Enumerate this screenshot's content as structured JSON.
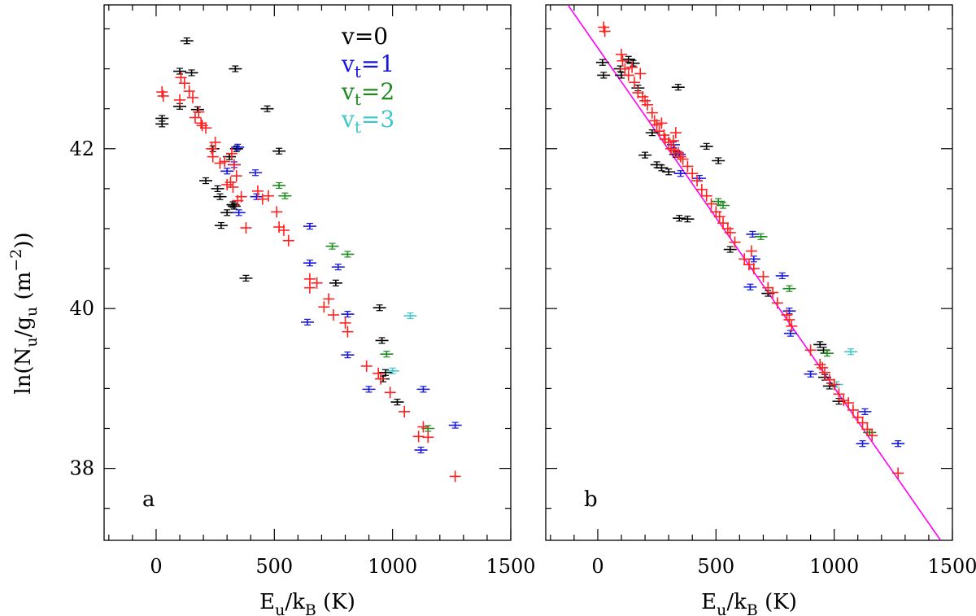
{
  "chart_data": {
    "type": "scatter",
    "colors": {
      "v=0": "#000000",
      "vt=1": "#1515e6",
      "vt=2": "#1f8a1f",
      "vt=3": "#40c8c8",
      "fit": "#ff00ff",
      "model": "#ff2020"
    },
    "legend": {
      "placement": "top-right of panel a",
      "entries": [
        {
          "key": "v=0",
          "base": "v=0",
          "sub": "",
          "rest": ""
        },
        {
          "key": "vt=1",
          "base": "v",
          "sub": "t",
          "rest": "=1"
        },
        {
          "key": "vt=2",
          "base": "v",
          "sub": "t",
          "rest": "=2"
        },
        {
          "key": "vt=3",
          "base": "v",
          "sub": "t",
          "rest": "=3"
        }
      ]
    },
    "ylabel": {
      "prefix": "ln(N",
      "sub1": "u",
      "mid": "/g",
      "sub2": "u",
      "units": " (m",
      "sup": "−2",
      "end": "))"
    },
    "xlabel": {
      "prefix": "E",
      "sub1": "u",
      "mid": "/k",
      "sub2": "B",
      "end": " (K)"
    },
    "xlim": [
      -220,
      1500
    ],
    "ylim": [
      37.1,
      43.8
    ],
    "xticks": [
      0,
      500,
      1000,
      1500
    ],
    "xtick_labels": [
      "0",
      "500",
      "1000",
      "1500"
    ],
    "yticks": [
      38,
      40,
      42
    ],
    "ytick_labels": [
      "38",
      "40",
      "42"
    ],
    "panels": [
      {
        "label": "a",
        "has_fit": false,
        "series": [
          {
            "name": "v=0",
            "points": [
              [
                25,
                42.38
              ],
              [
                25,
                42.31
              ],
              [
                100,
                42.97
              ],
              [
                100,
                42.53
              ],
              [
                130,
                43.35
              ],
              [
                150,
                42.95
              ],
              [
                175,
                42.49
              ],
              [
                210,
                41.6
              ],
              [
                240,
                42.0
              ],
              [
                260,
                41.5
              ],
              [
                270,
                41.4
              ],
              [
                275,
                41.04
              ],
              [
                300,
                41.2
              ],
              [
                310,
                41.9
              ],
              [
                325,
                41.3
              ],
              [
                330,
                41.28
              ],
              [
                335,
                43.0
              ],
              [
                340,
                42.0
              ],
              [
                380,
                40.38
              ],
              [
                470,
                42.5
              ],
              [
                520,
                41.97
              ],
              [
                760,
                40.32
              ],
              [
                945,
                40.01
              ],
              [
                955,
                39.6
              ],
              [
                960,
                39.12
              ],
              [
                970,
                39.2
              ],
              [
                1020,
                38.83
              ]
            ]
          },
          {
            "name": "vt=1",
            "points": [
              [
                300,
                41.72
              ],
              [
                330,
                41.8
              ],
              [
                345,
                42.02
              ],
              [
                350,
                41.2
              ],
              [
                420,
                41.7
              ],
              [
                425,
                41.4
              ],
              [
                640,
                39.83
              ],
              [
                650,
                41.03
              ],
              [
                650,
                40.57
              ],
              [
                770,
                40.52
              ],
              [
                810,
                39.93
              ],
              [
                810,
                39.42
              ],
              [
                900,
                38.99
              ],
              [
                1120,
                38.23
              ],
              [
                1130,
                38.99
              ],
              [
                1265,
                38.54
              ]
            ]
          },
          {
            "name": "vt=2",
            "points": [
              [
                520,
                41.54
              ],
              [
                545,
                41.41
              ],
              [
                745,
                40.78
              ],
              [
                810,
                40.68
              ],
              [
                975,
                39.43
              ],
              [
                1150,
                38.5
              ]
            ]
          },
          {
            "name": "vt=3",
            "points": [
              [
                1000,
                39.22
              ],
              [
                1075,
                39.91
              ]
            ]
          },
          {
            "name": "model",
            "points": [
              [
                25,
                42.71
              ],
              [
                30,
                42.66
              ],
              [
                100,
                42.61
              ],
              [
                105,
                42.89
              ],
              [
                120,
                42.82
              ],
              [
                140,
                42.72
              ],
              [
                155,
                42.64
              ],
              [
                165,
                42.39
              ],
              [
                180,
                42.46
              ],
              [
                190,
                42.32
              ],
              [
                195,
                42.29
              ],
              [
                210,
                42.26
              ],
              [
                235,
                42.0
              ],
              [
                240,
                41.9
              ],
              [
                250,
                42.08
              ],
              [
                270,
                41.82
              ],
              [
                290,
                41.84
              ],
              [
                300,
                41.55
              ],
              [
                315,
                41.58
              ],
              [
                320,
                41.94
              ],
              [
                325,
                41.52
              ],
              [
                330,
                41.8
              ],
              [
                340,
                41.66
              ],
              [
                345,
                41.35
              ],
              [
                360,
                41.4
              ],
              [
                380,
                41.01
              ],
              [
                430,
                41.47
              ],
              [
                450,
                41.37
              ],
              [
                475,
                41.41
              ],
              [
                510,
                41.21
              ],
              [
                520,
                41.02
              ],
              [
                540,
                40.98
              ],
              [
                560,
                40.85
              ],
              [
                650,
                40.37
              ],
              [
                650,
                40.26
              ],
              [
                680,
                40.32
              ],
              [
                710,
                40.02
              ],
              [
                730,
                40.12
              ],
              [
                750,
                39.92
              ],
              [
                800,
                39.82
              ],
              [
                810,
                39.71
              ],
              [
                890,
                39.28
              ],
              [
                940,
                39.19
              ],
              [
                950,
                39.12
              ],
              [
                990,
                38.95
              ],
              [
                1050,
                38.71
              ],
              [
                1110,
                38.4
              ],
              [
                1130,
                38.52
              ],
              [
                1150,
                38.39
              ],
              [
                1265,
                37.9
              ]
            ]
          }
        ]
      },
      {
        "label": "b",
        "has_fit": true,
        "fit_line": [
          [
            -150,
            43.9
          ],
          [
            1450,
            37.1
          ]
        ],
        "series": [
          {
            "name": "v=0",
            "points": [
              [
                20,
                43.08
              ],
              [
                25,
                42.92
              ],
              [
                95,
                43.0
              ],
              [
                100,
                42.92
              ],
              [
                130,
                43.12
              ],
              [
                150,
                43.07
              ],
              [
                170,
                42.76
              ],
              [
                200,
                41.92
              ],
              [
                230,
                42.2
              ],
              [
                250,
                41.8
              ],
              [
                270,
                41.76
              ],
              [
                300,
                41.71
              ],
              [
                330,
                41.93
              ],
              [
                340,
                42.77
              ],
              [
                345,
                41.13
              ],
              [
                380,
                41.12
              ],
              [
                460,
                42.03
              ],
              [
                510,
                41.85
              ],
              [
                560,
                40.74
              ],
              [
                720,
                40.19
              ],
              [
                940,
                39.55
              ],
              [
                955,
                39.48
              ],
              [
                960,
                39.14
              ],
              [
                980,
                39.03
              ],
              [
                1020,
                38.84
              ]
            ]
          },
          {
            "name": "vt=1",
            "points": [
              [
                320,
                42.05
              ],
              [
                345,
                41.93
              ],
              [
                350,
                41.69
              ],
              [
                430,
                41.63
              ],
              [
                645,
                40.27
              ],
              [
                655,
                40.93
              ],
              [
                660,
                40.62
              ],
              [
                780,
                40.41
              ],
              [
                810,
                39.97
              ],
              [
                815,
                39.69
              ],
              [
                900,
                39.18
              ],
              [
                1120,
                38.31
              ],
              [
                1130,
                38.71
              ],
              [
                1270,
                38.31
              ]
            ]
          },
          {
            "name": "vt=2",
            "points": [
              [
                510,
                41.34
              ],
              [
                530,
                41.29
              ],
              [
                690,
                40.9
              ],
              [
                810,
                40.25
              ],
              [
                970,
                39.44
              ],
              [
                1150,
                38.45
              ]
            ]
          },
          {
            "name": "vt=3",
            "points": [
              [
                1010,
                39.05
              ],
              [
                1070,
                39.46
              ]
            ]
          },
          {
            "name": "model",
            "points": [
              [
                25,
                43.52
              ],
              [
                30,
                43.47
              ],
              [
                100,
                43.18
              ],
              [
                105,
                43.1
              ],
              [
                115,
                43.0
              ],
              [
                130,
                42.92
              ],
              [
                145,
                43.02
              ],
              [
                155,
                42.83
              ],
              [
                170,
                42.7
              ],
              [
                180,
                42.94
              ],
              [
                190,
                42.65
              ],
              [
                200,
                42.6
              ],
              [
                210,
                42.55
              ],
              [
                230,
                42.45
              ],
              [
                240,
                42.35
              ],
              [
                250,
                42.3
              ],
              [
                260,
                42.22
              ],
              [
                270,
                42.32
              ],
              [
                280,
                42.17
              ],
              [
                285,
                42.12
              ],
              [
                300,
                42.08
              ],
              [
                310,
                42.0
              ],
              [
                320,
                42.1
              ],
              [
                325,
                41.98
              ],
              [
                330,
                42.2
              ],
              [
                340,
                41.95
              ],
              [
                350,
                41.9
              ],
              [
                360,
                41.87
              ],
              [
                380,
                41.78
              ],
              [
                400,
                41.69
              ],
              [
                420,
                41.6
              ],
              [
                440,
                41.49
              ],
              [
                460,
                41.41
              ],
              [
                480,
                41.31
              ],
              [
                500,
                41.21
              ],
              [
                515,
                41.15
              ],
              [
                530,
                41.07
              ],
              [
                550,
                41.0
              ],
              [
                560,
                40.95
              ],
              [
                580,
                40.83
              ],
              [
                620,
                40.62
              ],
              [
                640,
                40.55
              ],
              [
                650,
                40.72
              ],
              [
                660,
                40.5
              ],
              [
                700,
                40.4
              ],
              [
                720,
                40.26
              ],
              [
                740,
                40.2
              ],
              [
                760,
                40.07
              ],
              [
                800,
                39.92
              ],
              [
                810,
                39.86
              ],
              [
                820,
                39.78
              ],
              [
                900,
                39.48
              ],
              [
                940,
                39.3
              ],
              [
                950,
                39.26
              ],
              [
                960,
                39.2
              ],
              [
                980,
                39.11
              ],
              [
                1000,
                39.05
              ],
              [
                1020,
                38.93
              ],
              [
                1040,
                38.85
              ],
              [
                1060,
                38.82
              ],
              [
                1080,
                38.73
              ],
              [
                1100,
                38.64
              ],
              [
                1120,
                38.57
              ],
              [
                1140,
                38.49
              ],
              [
                1160,
                38.41
              ],
              [
                1270,
                37.94
              ]
            ]
          }
        ]
      }
    ]
  }
}
